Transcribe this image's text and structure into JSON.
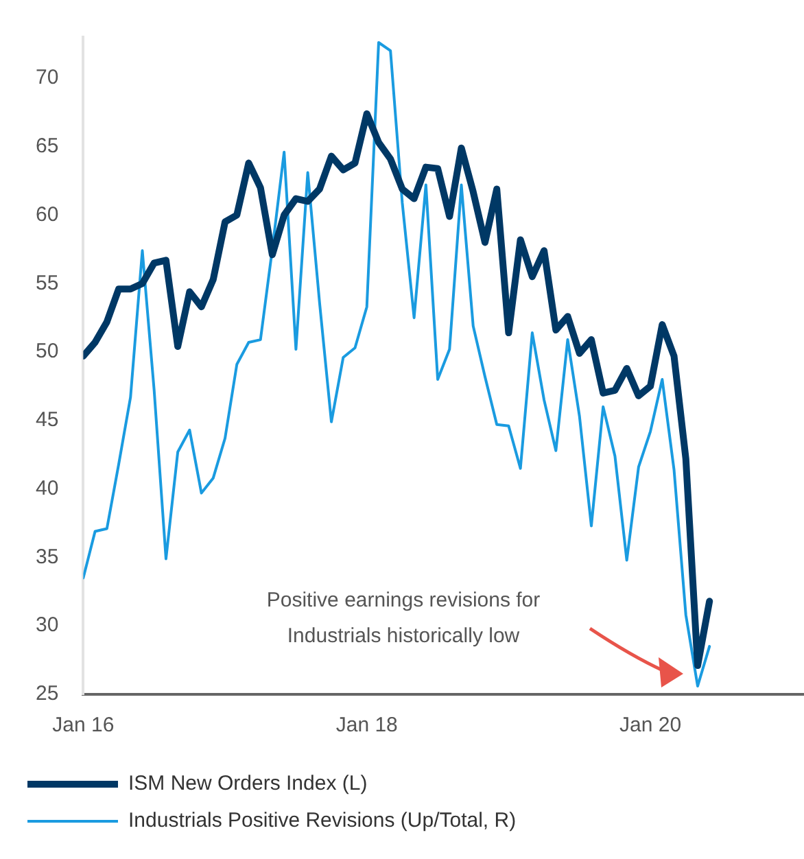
{
  "chart_data": {
    "type": "line",
    "x": [
      "2016-01",
      "2016-02",
      "2016-03",
      "2016-04",
      "2016-05",
      "2016-06",
      "2016-07",
      "2016-08",
      "2016-09",
      "2016-10",
      "2016-11",
      "2016-12",
      "2017-01",
      "2017-02",
      "2017-03",
      "2017-04",
      "2017-05",
      "2017-06",
      "2017-07",
      "2017-08",
      "2017-09",
      "2017-10",
      "2017-11",
      "2017-12",
      "2018-01",
      "2018-02",
      "2018-03",
      "2018-04",
      "2018-05",
      "2018-06",
      "2018-07",
      "2018-08",
      "2018-09",
      "2018-10",
      "2018-11",
      "2018-12",
      "2019-01",
      "2019-02",
      "2019-03",
      "2019-04",
      "2019-05",
      "2019-06",
      "2019-07",
      "2019-08",
      "2019-09",
      "2019-10",
      "2019-11",
      "2019-12",
      "2020-01",
      "2020-02",
      "2020-03",
      "2020-04",
      "2020-05",
      "2020-06"
    ],
    "series": [
      {
        "name": "ISM New Orders Index (L)",
        "color": "#003865",
        "values": [
          49.7,
          50.7,
          52.2,
          54.6,
          54.6,
          55.0,
          56.5,
          56.7,
          50.4,
          54.4,
          53.3,
          55.3,
          59.5,
          60.0,
          63.8,
          62.0,
          57.1,
          60.0,
          61.2,
          61.0,
          61.9,
          64.3,
          63.3,
          63.8,
          67.4,
          65.3,
          64.1,
          61.9,
          61.2,
          63.5,
          63.4,
          59.9,
          64.9,
          61.7,
          58.0,
          61.9,
          51.4,
          58.2,
          55.5,
          57.4,
          51.6,
          52.6,
          49.9,
          50.9,
          47.0,
          47.2,
          48.8,
          46.8,
          47.5,
          52.0,
          49.7,
          42.2,
          27.1,
          31.8
        ]
      },
      {
        "name": "Industrials Positive Revisions (Up/Total, R)",
        "color": "#1a9be0",
        "values": [
          33.5,
          36.9,
          37.1,
          41.8,
          46.7,
          57.4,
          47.2,
          34.9,
          42.7,
          44.3,
          39.7,
          40.8,
          43.7,
          49.1,
          50.7,
          50.9,
          57.5,
          64.6,
          50.2,
          63.1,
          53.6,
          44.9,
          49.6,
          50.3,
          53.3,
          72.6,
          72.0,
          60.9,
          52.5,
          62.2,
          48.0,
          50.2,
          62.2,
          51.9,
          48.2,
          44.7,
          44.6,
          41.5,
          51.4,
          46.5,
          42.8,
          50.9,
          45.3,
          37.3,
          46.0,
          42.4,
          34.8,
          41.6,
          44.2,
          48.0,
          41.4,
          30.8,
          25.6,
          28.5
        ]
      }
    ],
    "xlim": [
      "2016-01",
      "2021-02"
    ],
    "xticks": [
      {
        "value": "2016-01",
        "label": "Jan 16"
      },
      {
        "value": "2018-01",
        "label": "Jan 18"
      },
      {
        "value": "2020-01",
        "label": "Jan 20"
      }
    ],
    "ylim": [
      25,
      73
    ],
    "yticks": [
      25,
      30,
      35,
      40,
      45,
      50,
      55,
      60,
      65,
      70
    ],
    "grid": false,
    "legend": "bottom",
    "annotations": [
      "Positive earnings revisions for\nIndustrials historically low"
    ]
  }
}
